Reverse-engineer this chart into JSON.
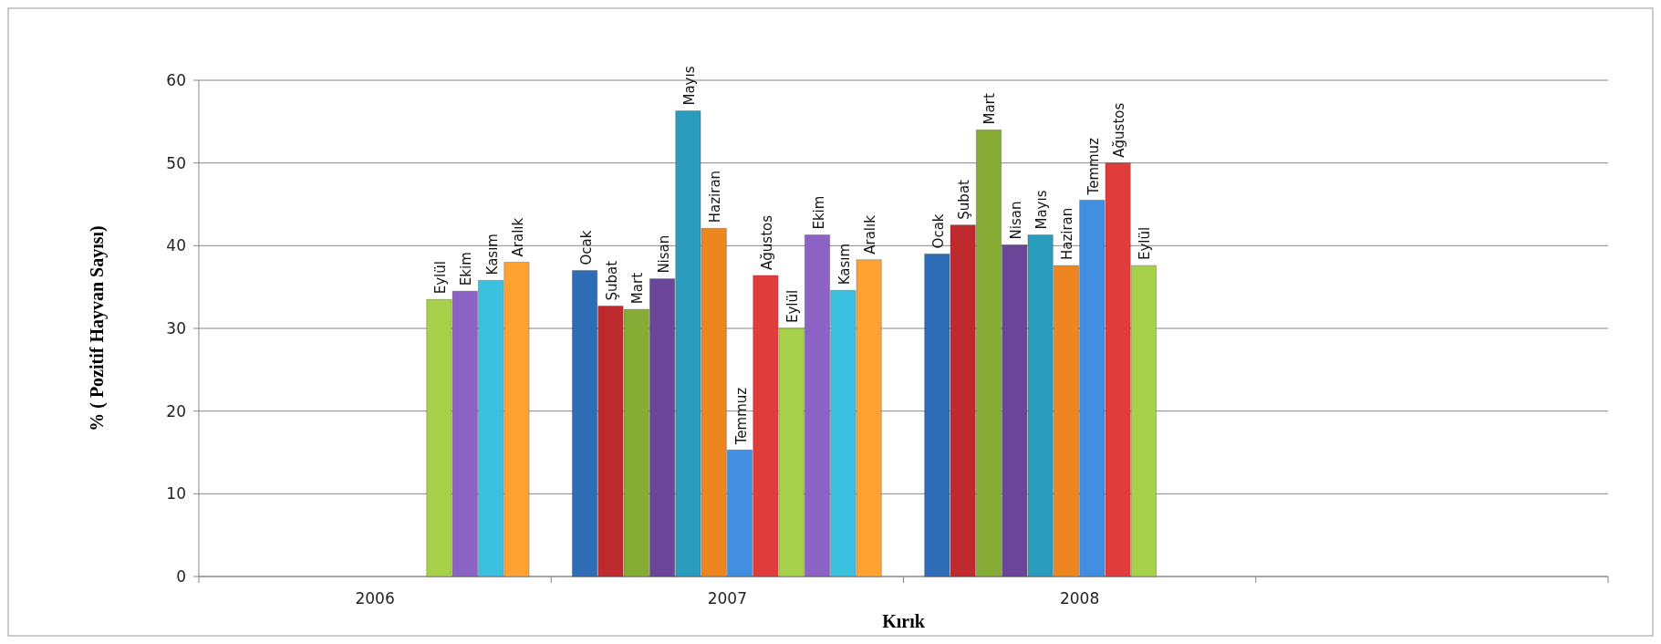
{
  "chart_data": {
    "type": "bar",
    "xlabel": "Kırık",
    "ylabel": "% ( Pozitif Hayvan Sayısı)",
    "categories": [
      "2006",
      "2007",
      "2008",
      null
    ],
    "ylim": [
      0,
      60
    ],
    "yticks": [
      0,
      10,
      20,
      30,
      40,
      50,
      60
    ],
    "grid": "y",
    "series": [
      {
        "name": "Ocak",
        "color": "#2e6db5",
        "values": [
          null,
          37,
          39,
          null
        ]
      },
      {
        "name": "Şubat",
        "color": "#bf2a2e",
        "values": [
          null,
          32.7,
          42.5,
          null
        ]
      },
      {
        "name": "Mart",
        "color": "#86ac36",
        "values": [
          null,
          32.3,
          54,
          null
        ]
      },
      {
        "name": "Nisan",
        "color": "#6a4699",
        "values": [
          null,
          36,
          40.1,
          null
        ]
      },
      {
        "name": "Mayıs",
        "color": "#2a9cbc",
        "values": [
          null,
          56.3,
          41.3,
          null
        ]
      },
      {
        "name": "Haziran",
        "color": "#ee8620",
        "values": [
          null,
          42.1,
          37.6,
          null
        ]
      },
      {
        "name": "Temmuz",
        "color": "#428ee0",
        "values": [
          null,
          15.3,
          45.5,
          null
        ]
      },
      {
        "name": "Ağustos",
        "color": "#e03c3c",
        "values": [
          null,
          36.4,
          50,
          null
        ]
      },
      {
        "name": "Eylül",
        "color": "#a6d04a",
        "values": [
          33.5,
          30,
          37.6,
          null
        ]
      },
      {
        "name": "Ekim",
        "color": "#8c62c4",
        "values": [
          34.5,
          41.3,
          null,
          null
        ]
      },
      {
        "name": "Kasım",
        "color": "#3cc0e0",
        "values": [
          35.8,
          34.6,
          null,
          null
        ]
      },
      {
        "name": "Aralık",
        "color": "#ffa232",
        "values": [
          38,
          38.3,
          null,
          null
        ]
      }
    ]
  }
}
